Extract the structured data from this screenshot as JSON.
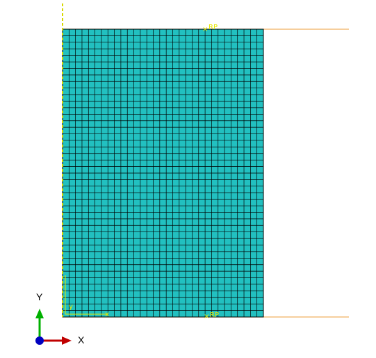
{
  "viewport": {
    "background": "#ffffff"
  },
  "mesh": {
    "columns": 31,
    "rows": 44,
    "fill_color": "#22c0c0",
    "edge_color": "#000000"
  },
  "reference_points": [
    {
      "marker": "×",
      "label": "RP",
      "color": "#e8e800"
    },
    {
      "marker": "×",
      "label": "RP",
      "color": "#e8e800"
    }
  ],
  "rigid_surfaces": {
    "color": "#f0b060"
  },
  "symmetry_axis": {
    "color": "#d8d800"
  },
  "local_csys": {
    "x_label": "x",
    "y_label": "y",
    "color": "#e8e800"
  },
  "triad": {
    "x_label": "X",
    "y_label": "Y",
    "x_color": "#c00000",
    "y_color": "#00b000",
    "origin_color": "#0000c0"
  }
}
